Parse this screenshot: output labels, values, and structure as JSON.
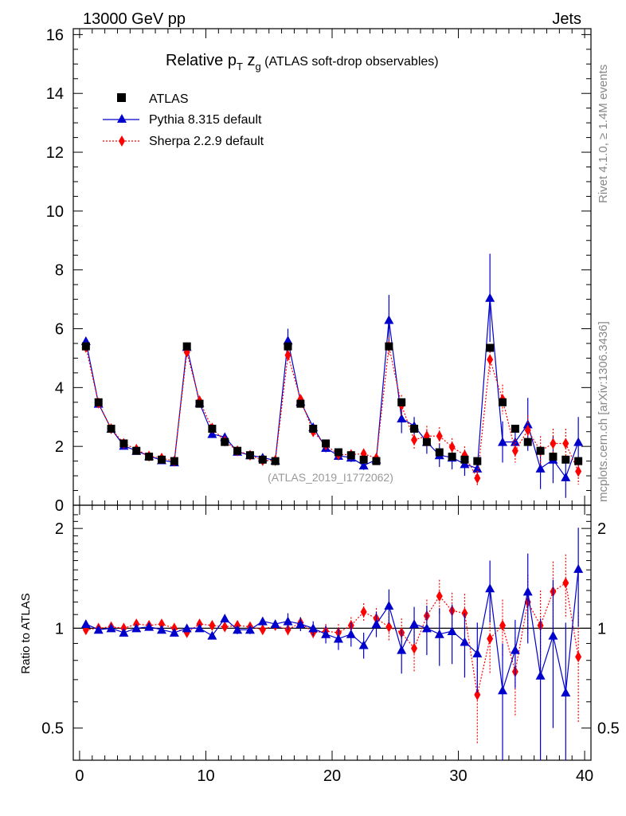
{
  "header": {
    "left": "13000 GeV pp",
    "right": "Jets",
    "side_top": "Rivet 4.1.0, ≥ 1.4M events",
    "side_bottom": "mcplots.cern.ch [arXiv:1306.3436]"
  },
  "chart_data": [
    {
      "type": "scatter",
      "panel": "main",
      "title_main": "Relative p",
      "title_sub_T": "T",
      "title_z": " z",
      "title_sub_g": "g",
      "title_rest": " (ATLAS soft-drop observables)",
      "watermark": "(ATLAS_2019_I1772062)",
      "xlim": [
        -0.5,
        40.5
      ],
      "ylim": [
        0,
        16.2
      ],
      "yticks": [
        "0",
        "2",
        "4",
        "6",
        "8",
        "10",
        "12",
        "14",
        "16"
      ],
      "xticks": [
        "0",
        "10",
        "20",
        "30",
        "40"
      ],
      "x": [
        0.5,
        1.5,
        2.5,
        3.5,
        4.5,
        5.5,
        6.5,
        7.5,
        8.5,
        9.5,
        10.5,
        11.5,
        12.5,
        13.5,
        14.5,
        15.5,
        16.5,
        17.5,
        18.5,
        19.5,
        20.5,
        21.5,
        22.5,
        23.5,
        24.5,
        25.5,
        26.5,
        27.5,
        28.5,
        29.5,
        30.5,
        31.5,
        32.5,
        33.5,
        34.5,
        35.5,
        36.5,
        37.5,
        38.5,
        39.5
      ],
      "legend": [
        "ATLAS",
        "Pythia 8.315 default",
        "Sherpa 2.2.9 default"
      ],
      "series": [
        {
          "name": "ATLAS",
          "color": "#000000",
          "marker": "square",
          "values": [
            5.4,
            3.5,
            2.6,
            2.1,
            1.85,
            1.65,
            1.55,
            1.5,
            5.4,
            3.45,
            2.6,
            2.15,
            1.85,
            1.7,
            1.55,
            1.5,
            5.4,
            3.45,
            2.6,
            2.1,
            1.8,
            1.7,
            1.55,
            1.5,
            5.4,
            3.5,
            2.6,
            2.15,
            1.8,
            1.65,
            1.55,
            1.5,
            5.35,
            3.5,
            2.6,
            2.15,
            1.85,
            1.65,
            1.55,
            1.5
          ]
        },
        {
          "name": "Pythia 8.315 default",
          "color": "#0000cc",
          "marker": "triangle",
          "values": [
            5.58,
            3.45,
            2.6,
            2.02,
            1.85,
            1.67,
            1.53,
            1.46,
            5.38,
            3.48,
            2.42,
            2.32,
            1.82,
            1.7,
            1.62,
            1.52,
            5.6,
            3.52,
            2.65,
            1.95,
            1.68,
            1.62,
            1.35,
            1.55,
            6.3,
            2.95,
            2.7,
            2.15,
            1.7,
            1.62,
            1.4,
            1.25,
            7.05,
            2.15,
            2.15,
            2.75,
            1.25,
            1.55,
            0.95,
            2.15
          ],
          "err": [
            0.05,
            0.05,
            0.04,
            0.04,
            0.04,
            0.04,
            0.04,
            0.04,
            0.06,
            0.08,
            0.08,
            0.08,
            0.08,
            0.08,
            0.08,
            0.08,
            0.4,
            0.2,
            0.15,
            0.15,
            0.15,
            0.15,
            0.15,
            0.15,
            0.85,
            0.5,
            0.3,
            0.4,
            0.4,
            0.4,
            0.4,
            0.35,
            1.5,
            0.7,
            0.5,
            0.9,
            0.7,
            0.8,
            0.7,
            0.85
          ]
        },
        {
          "name": "Sherpa 2.2.9 default",
          "color": "#ff0000",
          "marker": "diamond",
          "values": [
            5.37,
            3.47,
            2.6,
            2.1,
            1.9,
            1.67,
            1.6,
            1.5,
            5.2,
            3.55,
            2.62,
            2.18,
            1.85,
            1.7,
            1.52,
            1.52,
            5.1,
            3.6,
            2.5,
            2.05,
            1.72,
            1.72,
            1.75,
            1.6,
            5.4,
            3.4,
            2.22,
            2.35,
            2.35,
            1.98,
            1.7,
            0.92,
            4.95,
            3.6,
            1.85,
            2.55,
            1.85,
            2.1,
            2.1,
            1.15
          ],
          "err": [
            0.04,
            0.04,
            0.04,
            0.04,
            0.04,
            0.04,
            0.04,
            0.04,
            0.06,
            0.08,
            0.08,
            0.08,
            0.08,
            0.08,
            0.08,
            0.08,
            0.2,
            0.15,
            0.15,
            0.15,
            0.15,
            0.15,
            0.15,
            0.15,
            0.3,
            0.35,
            0.3,
            0.35,
            0.3,
            0.3,
            0.3,
            0.25,
            0.5,
            0.5,
            0.4,
            0.5,
            0.5,
            0.5,
            0.5,
            0.45
          ]
        }
      ]
    },
    {
      "type": "scatter",
      "panel": "ratio",
      "ylabel": "Ratio to ATLAS",
      "ylim": [
        0.4,
        2.35
      ],
      "yticks": [
        "0.5",
        "1",
        "2"
      ],
      "reference": 1.0,
      "series": [
        {
          "name": "Pythia 8.315 default",
          "color": "#0000cc",
          "marker": "triangle",
          "values": [
            1.03,
            0.99,
            1.0,
            0.97,
            1.0,
            1.01,
            0.99,
            0.97,
            1.0,
            1.0,
            0.95,
            1.07,
            0.99,
            0.99,
            1.05,
            1.03,
            1.05,
            1.03,
            1.0,
            0.96,
            0.93,
            0.96,
            0.89,
            1.03,
            1.17,
            0.86,
            1.03,
            1.0,
            0.96,
            0.98,
            0.91,
            0.84,
            1.32,
            0.65,
            0.86,
            1.29,
            0.72,
            0.95,
            0.64,
            1.51
          ],
          "err": [
            0.02,
            0.02,
            0.02,
            0.02,
            0.02,
            0.02,
            0.02,
            0.02,
            0.02,
            0.02,
            0.02,
            0.03,
            0.03,
            0.03,
            0.03,
            0.03,
            0.06,
            0.05,
            0.05,
            0.06,
            0.07,
            0.08,
            0.08,
            0.09,
            0.14,
            0.13,
            0.13,
            0.17,
            0.19,
            0.2,
            0.2,
            0.2,
            0.28,
            0.25,
            0.2,
            0.39,
            0.35,
            0.45,
            0.4,
            0.5
          ]
        },
        {
          "name": "Sherpa 2.2.9 default",
          "color": "#ff0000",
          "marker": "diamond",
          "values": [
            0.99,
            1.0,
            1.01,
            1.0,
            1.03,
            1.02,
            1.03,
            1.0,
            0.97,
            1.03,
            1.02,
            1.01,
            1.02,
            1.01,
            0.99,
            1.02,
            0.99,
            1.04,
            0.97,
            0.98,
            0.97,
            1.02,
            1.12,
            1.07,
            1.01,
            0.97,
            0.87,
            1.09,
            1.25,
            1.13,
            1.11,
            0.63,
            0.93,
            1.02,
            0.74,
            1.2,
            1.02,
            1.29,
            1.37,
            0.82
          ],
          "err": [
            0.02,
            0.02,
            0.02,
            0.02,
            0.02,
            0.02,
            0.02,
            0.02,
            0.02,
            0.02,
            0.02,
            0.03,
            0.03,
            0.03,
            0.03,
            0.03,
            0.04,
            0.04,
            0.04,
            0.05,
            0.06,
            0.06,
            0.07,
            0.08,
            0.1,
            0.1,
            0.13,
            0.13,
            0.15,
            0.15,
            0.16,
            0.18,
            0.2,
            0.2,
            0.2,
            0.25,
            0.28,
            0.3,
            0.3,
            0.3
          ]
        }
      ]
    }
  ]
}
